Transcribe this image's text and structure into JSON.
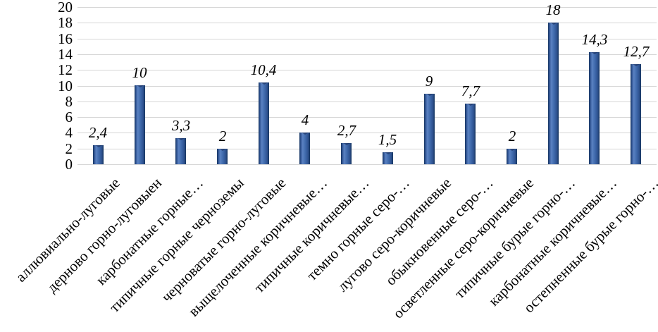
{
  "chart_data": {
    "type": "bar",
    "title": "",
    "xlabel": "",
    "ylabel": "",
    "categories": [
      "аллювиально-луговые",
      "дерново горно-луговыен",
      "карбонатные горные…",
      "типичные горные черноземы",
      "черноватые горно-луговые",
      "выщелоченные коричневые…",
      "типичные коричневые…",
      "темно горные серо-…",
      "лугово серо-коричневые",
      "обыкновенные серо-…",
      "осветленные серо-коричневые",
      "типичные бурые горно-…",
      "карбонатные коричневые…",
      "остепненные бурые горно-…"
    ],
    "values": [
      2.4,
      10,
      3.3,
      2,
      10.4,
      4,
      2.7,
      1.5,
      9,
      7.7,
      2,
      18,
      14.3,
      12.7
    ],
    "value_labels": [
      "2,4",
      "10",
      "3,3",
      "2",
      "10,4",
      "4",
      "2,7",
      "1,5",
      "9",
      "7,7",
      "2",
      "18",
      "14,3",
      "12,7"
    ],
    "ylim": [
      0,
      20
    ],
    "ytick_step": 2,
    "yticks": [
      "0",
      "2",
      "4",
      "6",
      "8",
      "10",
      "12",
      "14",
      "16",
      "18",
      "20"
    ],
    "grid": "horizontal",
    "legend": "none",
    "label_rotation_deg": 45,
    "colors": {
      "bar_edge": "#16345e",
      "bar_mid": "#2e5290",
      "bar_highlight": "#5b82c2",
      "bar_center": "#416bae",
      "gridline": "#d6d6d6",
      "text": "#000000"
    }
  }
}
